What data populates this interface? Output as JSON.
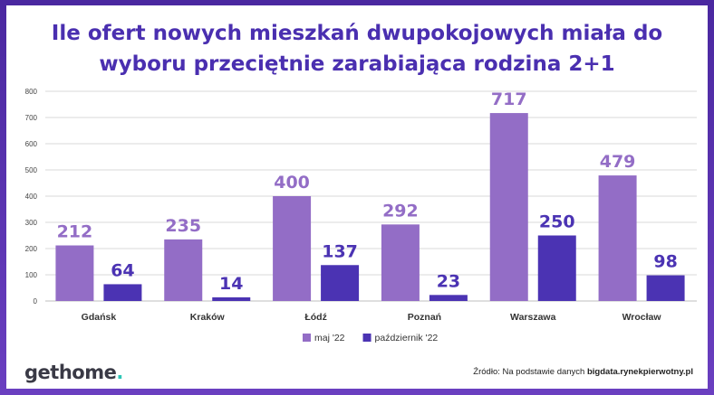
{
  "title_line1": "Ile ofert nowych mieszkań dwupokojowych miała do",
  "title_line2": "wyboru przeciętnie zarabiająca rodzina 2+1",
  "logo": {
    "part1": "get",
    "part2": "home",
    "part3": "."
  },
  "source": {
    "prefix": "Źródło: Na podstawie danych ",
    "link": "bigdata.rynekpierwotny.pl"
  },
  "colors": {
    "maj": "#936dc6",
    "pazdziernik": "#4b33b3",
    "title": "#4a2fb0",
    "grid": "#d9d9d9"
  },
  "chart_data": {
    "type": "bar",
    "categories": [
      "Gdańsk",
      "Kraków",
      "Łódź",
      "Poznań",
      "Warszawa",
      "Wrocław"
    ],
    "series": [
      {
        "name": "maj  '22",
        "values": [
          212,
          235,
          400,
          292,
          717,
          479
        ]
      },
      {
        "name": "październik '22",
        "values": [
          64,
          14,
          137,
          23,
          250,
          98
        ]
      }
    ],
    "yticks": [
      "0",
      "100",
      "200",
      "300",
      "400",
      "500",
      "600",
      "700",
      "800"
    ],
    "ylim": [
      0,
      800
    ],
    "grid": true,
    "legend": "bottom-center"
  }
}
